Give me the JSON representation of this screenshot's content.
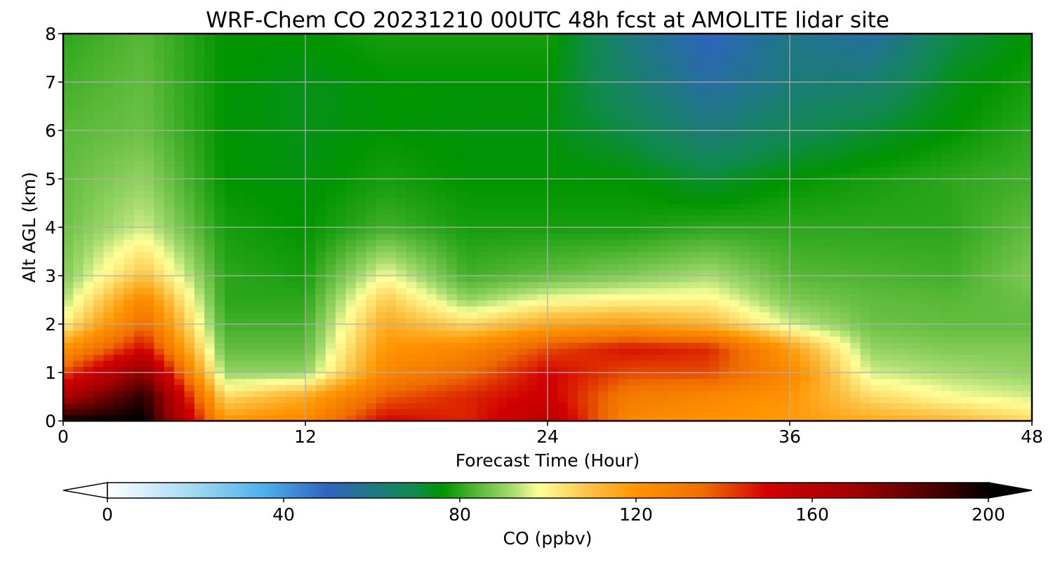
{
  "chart_data": {
    "type": "heatmap",
    "title": "WRF-Chem CO  20231210 00UTC 48h fcst at AMOLITE lidar site",
    "xlabel": "Forecast Time (Hour)",
    "ylabel": "Alt AGL (km)",
    "xlim": [
      0,
      48
    ],
    "ylim": [
      0,
      8
    ],
    "x_ticks": [
      "0",
      "12",
      "24",
      "36",
      "48"
    ],
    "y_ticks": [
      "0",
      "1",
      "2",
      "3",
      "4",
      "5",
      "6",
      "7",
      "8"
    ],
    "grid": true,
    "x": [
      0,
      4,
      8,
      12,
      16,
      20,
      24,
      28,
      32,
      36,
      40,
      44,
      48
    ],
    "y": [
      0,
      0.5,
      1,
      1.5,
      2,
      2.5,
      3,
      4,
      5,
      6,
      7,
      8
    ],
    "z": [
      [
        200,
        200,
        120,
        125,
        150,
        145,
        160,
        125,
        120,
        118,
        115,
        112,
        105
      ],
      [
        165,
        195,
        105,
        115,
        138,
        145,
        152,
        130,
        125,
        120,
        105,
        98,
        95
      ],
      [
        140,
        175,
        90,
        90,
        125,
        135,
        150,
        140,
        140,
        125,
        95,
        92,
        90
      ],
      [
        120,
        150,
        85,
        85,
        120,
        125,
        140,
        148,
        145,
        118,
        90,
        88,
        88
      ],
      [
        100,
        135,
        82,
        82,
        115,
        105,
        115,
        118,
        112,
        95,
        86,
        85,
        85
      ],
      [
        92,
        125,
        80,
        80,
        108,
        90,
        98,
        100,
        100,
        88,
        85,
        84,
        86
      ],
      [
        88,
        110,
        80,
        78,
        98,
        82,
        85,
        88,
        92,
        84,
        83,
        82,
        88
      ],
      [
        86,
        95,
        78,
        76,
        82,
        78,
        78,
        78,
        80,
        80,
        80,
        80,
        85
      ],
      [
        85,
        90,
        76,
        75,
        78,
        76,
        76,
        76,
        72,
        76,
        78,
        80,
        82
      ],
      [
        84,
        86,
        76,
        74,
        76,
        75,
        75,
        70,
        62,
        68,
        72,
        76,
        80
      ],
      [
        82,
        85,
        76,
        74,
        76,
        76,
        76,
        65,
        55,
        62,
        64,
        74,
        78
      ],
      [
        80,
        84,
        76,
        76,
        78,
        78,
        78,
        62,
        50,
        60,
        55,
        70,
        76
      ]
    ],
    "colorbar": {
      "label": "CO  (ppbv)",
      "range": [
        0,
        200
      ],
      "ticks": [
        "0",
        "40",
        "80",
        "120",
        "160",
        "200"
      ],
      "extend": "both"
    },
    "colors": {
      "0": "#ffffff",
      "20": "#9fd8f2",
      "35": "#4fb2ee",
      "50": "#2e63c0",
      "70": "#0f8a4a",
      "76": "#009400",
      "84": "#58b838",
      "92": "#a8dc70",
      "98": "#ffff99",
      "110": "#fcbf40",
      "120": "#ff9400",
      "135": "#f06e00",
      "150": "#d20000",
      "170": "#a00000",
      "190": "#400000",
      "200": "#000000"
    }
  }
}
